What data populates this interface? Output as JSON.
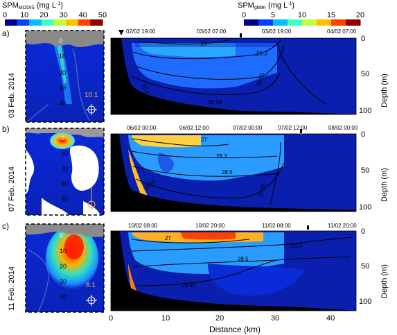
{
  "colorbars": {
    "modis": {
      "label_main": "SPM",
      "label_sub": "MODIS",
      "label_unit": " (mg L",
      "label_exp": "-1",
      "label_close": ")",
      "ticks": [
        "0",
        "10",
        "20",
        "30",
        "40",
        "50"
      ],
      "colors": [
        "#00008f",
        "#0040ff",
        "#00c0ff",
        "#40ffc0",
        "#c0ff40",
        "#ffc000",
        "#ff4000",
        "#8f0000"
      ]
    },
    "glider": {
      "label_main": "SPM",
      "label_sub": "glider",
      "label_unit": " (mg L",
      "label_exp": "-1",
      "label_close": ")",
      "ticks": [
        "0",
        "5",
        "10",
        "15",
        "20"
      ],
      "colors": [
        "#00008f",
        "#0040ff",
        "#00c0ff",
        "#40ffc0",
        "#c0ff40",
        "#ffc000",
        "#ff4000",
        "#8f0000"
      ]
    }
  },
  "rows": [
    {
      "letter": "a)",
      "date": "03 Feb. 2014",
      "map_value": "10.1",
      "map_depths": [
        "0",
        "10",
        "20",
        "30",
        "40"
      ],
      "time_labels": [
        "02/02 19:00",
        "03/02 07:00",
        "03/02 19:00",
        "04/02 07:00"
      ],
      "isopycnals": [
        "27",
        "28.3",
        "28.5",
        "28.55",
        "28.55"
      ]
    },
    {
      "letter": "b)",
      "date": "07 Feb. 2014",
      "map_value": "",
      "map_depths": [
        "0",
        "10",
        "20",
        "30",
        "40"
      ],
      "time_labels": [
        "06/02 00:00",
        "06/02 12:00",
        "07/02 00:00",
        "07/02 12:00",
        "08/02 00:00"
      ],
      "isopycnals": [
        "27",
        "28.3",
        "28.5",
        "28.55",
        "28.55"
      ]
    },
    {
      "letter": "c)",
      "date": "11 Feb. 2014",
      "map_value": "8.1",
      "map_depths": [
        "0",
        "10",
        "20",
        "30",
        "40"
      ],
      "time_labels": [
        "10/02 08:00",
        "10/02 20:00",
        "11/02 08:00",
        "11/02 20:00"
      ],
      "isopycnals": [
        "27",
        "28.3",
        "28.5",
        "28.55"
      ]
    }
  ],
  "depth_axis": {
    "label": "Depth (m)",
    "ticks": [
      "0",
      "50",
      "100"
    ]
  },
  "distance_axis": {
    "label": "Distance (km)",
    "ticks": [
      "0",
      "10",
      "20",
      "30",
      "40"
    ]
  }
}
